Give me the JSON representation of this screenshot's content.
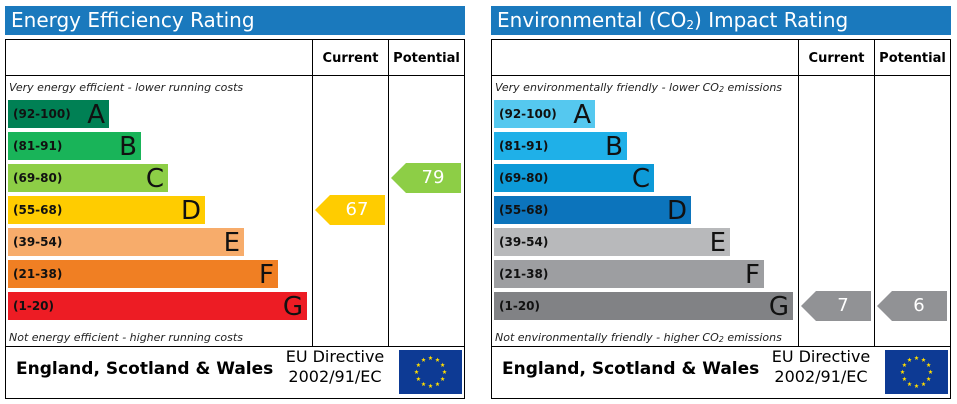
{
  "chart_data": [
    {
      "type": "bar",
      "title": "Energy Efficiency Rating",
      "columns": [
        "Current",
        "Potential"
      ],
      "top_note": "Very energy efficient - lower running costs",
      "bottom_note": "Not energy efficient - higher running costs",
      "bands": [
        {
          "range": "(92-100)",
          "letter": "A",
          "color": "#008054"
        },
        {
          "range": "(81-91)",
          "letter": "B",
          "color": "#19b459"
        },
        {
          "range": "(69-80)",
          "letter": "C",
          "color": "#8dce46"
        },
        {
          "range": "(55-68)",
          "letter": "D",
          "color": "#ffcc00"
        },
        {
          "range": "(39-54)",
          "letter": "E",
          "color": "#f7ac6b"
        },
        {
          "range": "(21-38)",
          "letter": "F",
          "color": "#f07f23"
        },
        {
          "range": "(1-20)",
          "letter": "G",
          "color": "#ed1c24"
        }
      ],
      "current": {
        "value": 67,
        "band": "D",
        "color": "#ffcc00"
      },
      "potential": {
        "value": 79,
        "band": "C",
        "color": "#8dce46"
      },
      "footer_region": "England, Scotland & Wales",
      "directive_line1": "EU Directive",
      "directive_line2": "2002/91/EC"
    },
    {
      "type": "bar",
      "title_prefix": "Environmental (CO",
      "title_sub": "2",
      "title_suffix": ") Impact Rating",
      "columns": [
        "Current",
        "Potential"
      ],
      "top_note_prefix": "Very environmentally friendly - lower CO",
      "top_note_sub": "2",
      "top_note_suffix": " emissions",
      "bottom_note_prefix": "Not environmentally friendly - higher CO",
      "bottom_note_sub": "2",
      "bottom_note_suffix": " emissions",
      "bands": [
        {
          "range": "(92-100)",
          "letter": "A",
          "color": "#55c8ef"
        },
        {
          "range": "(81-91)",
          "letter": "B",
          "color": "#1fb0e8"
        },
        {
          "range": "(69-80)",
          "letter": "C",
          "color": "#0d9ad8"
        },
        {
          "range": "(55-68)",
          "letter": "D",
          "color": "#0c74bc"
        },
        {
          "range": "(39-54)",
          "letter": "E",
          "color": "#b8b9bb"
        },
        {
          "range": "(21-38)",
          "letter": "F",
          "color": "#9d9ea1"
        },
        {
          "range": "(1-20)",
          "letter": "G",
          "color": "#818285"
        }
      ],
      "current": {
        "value": 7,
        "band": "G",
        "color": "#919295"
      },
      "potential": {
        "value": 6,
        "band": "G",
        "color": "#919295"
      },
      "footer_region": "England, Scotland & Wales",
      "directive_line1": "EU Directive",
      "directive_line2": "2002/91/EC"
    }
  ],
  "eu_flag": {
    "background": "#0d3a94",
    "stars": "#ffdd00"
  }
}
